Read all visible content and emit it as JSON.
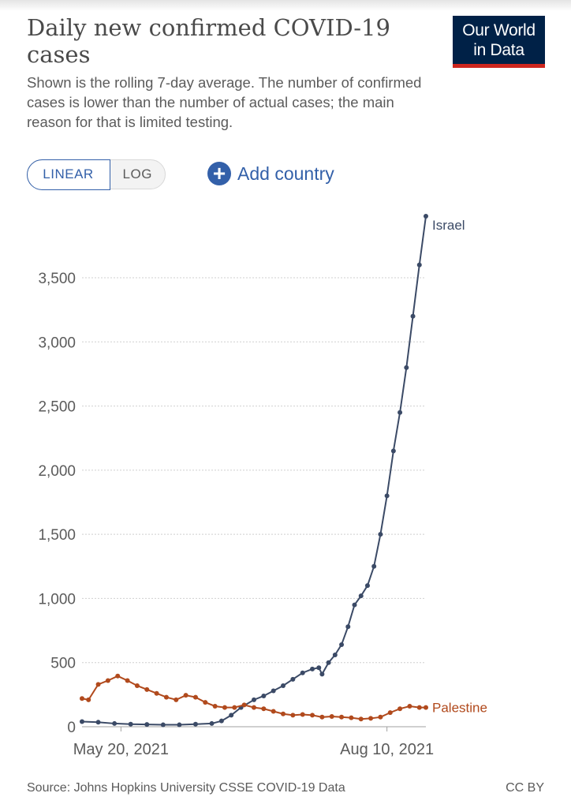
{
  "header": {
    "title": "Daily new confirmed COVID-19 cases",
    "subtitle": "Shown is the rolling 7-day average. The number of confirmed cases is lower than the number of actual cases; the main reason for that is limited testing."
  },
  "logo": {
    "line1": "Our World",
    "line2": "in Data",
    "background": "#002147",
    "accent": "#ce261e"
  },
  "controls": {
    "linear_label": "LINEAR",
    "log_label": "LOG",
    "add_country_label": "Add country",
    "add_icon": "plus-circle-icon"
  },
  "chart_data": {
    "type": "line",
    "x_axis": {
      "start": "2021-05-08",
      "end": "2021-08-22",
      "tick_labels": [
        "May 20, 2021",
        "Aug 10, 2021"
      ],
      "tick_dates": [
        "2021-05-20",
        "2021-08-10"
      ]
    },
    "y_axis": {
      "ylim": [
        0,
        3980
      ],
      "ticks": [
        0,
        500,
        1000,
        1500,
        2000,
        2500,
        3000,
        3500
      ],
      "tick_labels": [
        "0",
        "500",
        "1,000",
        "1,500",
        "2,000",
        "2,500",
        "3,000",
        "3,500"
      ]
    },
    "grid": "horizontal-dotted",
    "series": [
      {
        "name": "Israel",
        "color": "#3b4a66",
        "points": [
          [
            "2021-05-08",
            40
          ],
          [
            "2021-05-13",
            35
          ],
          [
            "2021-05-18",
            25
          ],
          [
            "2021-05-23",
            20
          ],
          [
            "2021-05-28",
            18
          ],
          [
            "2021-06-02",
            15
          ],
          [
            "2021-06-07",
            15
          ],
          [
            "2021-06-12",
            20
          ],
          [
            "2021-06-17",
            25
          ],
          [
            "2021-06-20",
            45
          ],
          [
            "2021-06-23",
            90
          ],
          [
            "2021-06-26",
            150
          ],
          [
            "2021-06-30",
            210
          ],
          [
            "2021-07-03",
            240
          ],
          [
            "2021-07-06",
            280
          ],
          [
            "2021-07-09",
            320
          ],
          [
            "2021-07-12",
            370
          ],
          [
            "2021-07-15",
            420
          ],
          [
            "2021-07-18",
            450
          ],
          [
            "2021-07-20",
            460
          ],
          [
            "2021-07-21",
            410
          ],
          [
            "2021-07-23",
            500
          ],
          [
            "2021-07-25",
            560
          ],
          [
            "2021-07-27",
            640
          ],
          [
            "2021-07-29",
            780
          ],
          [
            "2021-07-31",
            950
          ],
          [
            "2021-08-02",
            1020
          ],
          [
            "2021-08-04",
            1100
          ],
          [
            "2021-08-06",
            1250
          ],
          [
            "2021-08-08",
            1500
          ],
          [
            "2021-08-10",
            1800
          ],
          [
            "2021-08-12",
            2150
          ],
          [
            "2021-08-14",
            2450
          ],
          [
            "2021-08-16",
            2800
          ],
          [
            "2021-08-18",
            3200
          ],
          [
            "2021-08-20",
            3600
          ],
          [
            "2021-08-22",
            3980
          ]
        ]
      },
      {
        "name": "Palestine",
        "color": "#b14a1d",
        "points": [
          [
            "2021-05-08",
            220
          ],
          [
            "2021-05-10",
            210
          ],
          [
            "2021-05-13",
            330
          ],
          [
            "2021-05-16",
            360
          ],
          [
            "2021-05-19",
            395
          ],
          [
            "2021-05-22",
            360
          ],
          [
            "2021-05-25",
            320
          ],
          [
            "2021-05-28",
            290
          ],
          [
            "2021-05-31",
            260
          ],
          [
            "2021-06-03",
            230
          ],
          [
            "2021-06-06",
            210
          ],
          [
            "2021-06-09",
            245
          ],
          [
            "2021-06-12",
            230
          ],
          [
            "2021-06-15",
            190
          ],
          [
            "2021-06-18",
            160
          ],
          [
            "2021-06-21",
            150
          ],
          [
            "2021-06-24",
            150
          ],
          [
            "2021-06-27",
            170
          ],
          [
            "2021-06-30",
            150
          ],
          [
            "2021-07-03",
            140
          ],
          [
            "2021-07-06",
            120
          ],
          [
            "2021-07-09",
            100
          ],
          [
            "2021-07-12",
            90
          ],
          [
            "2021-07-15",
            95
          ],
          [
            "2021-07-18",
            90
          ],
          [
            "2021-07-21",
            75
          ],
          [
            "2021-07-24",
            80
          ],
          [
            "2021-07-27",
            75
          ],
          [
            "2021-07-30",
            70
          ],
          [
            "2021-08-02",
            60
          ],
          [
            "2021-08-05",
            65
          ],
          [
            "2021-08-08",
            75
          ],
          [
            "2021-08-11",
            110
          ],
          [
            "2021-08-14",
            140
          ],
          [
            "2021-08-17",
            160
          ],
          [
            "2021-08-20",
            150
          ],
          [
            "2021-08-22",
            150
          ]
        ]
      }
    ]
  },
  "footer": {
    "source": "Source: Johns Hopkins University CSSE COVID-19 Data",
    "license": "CC BY"
  }
}
